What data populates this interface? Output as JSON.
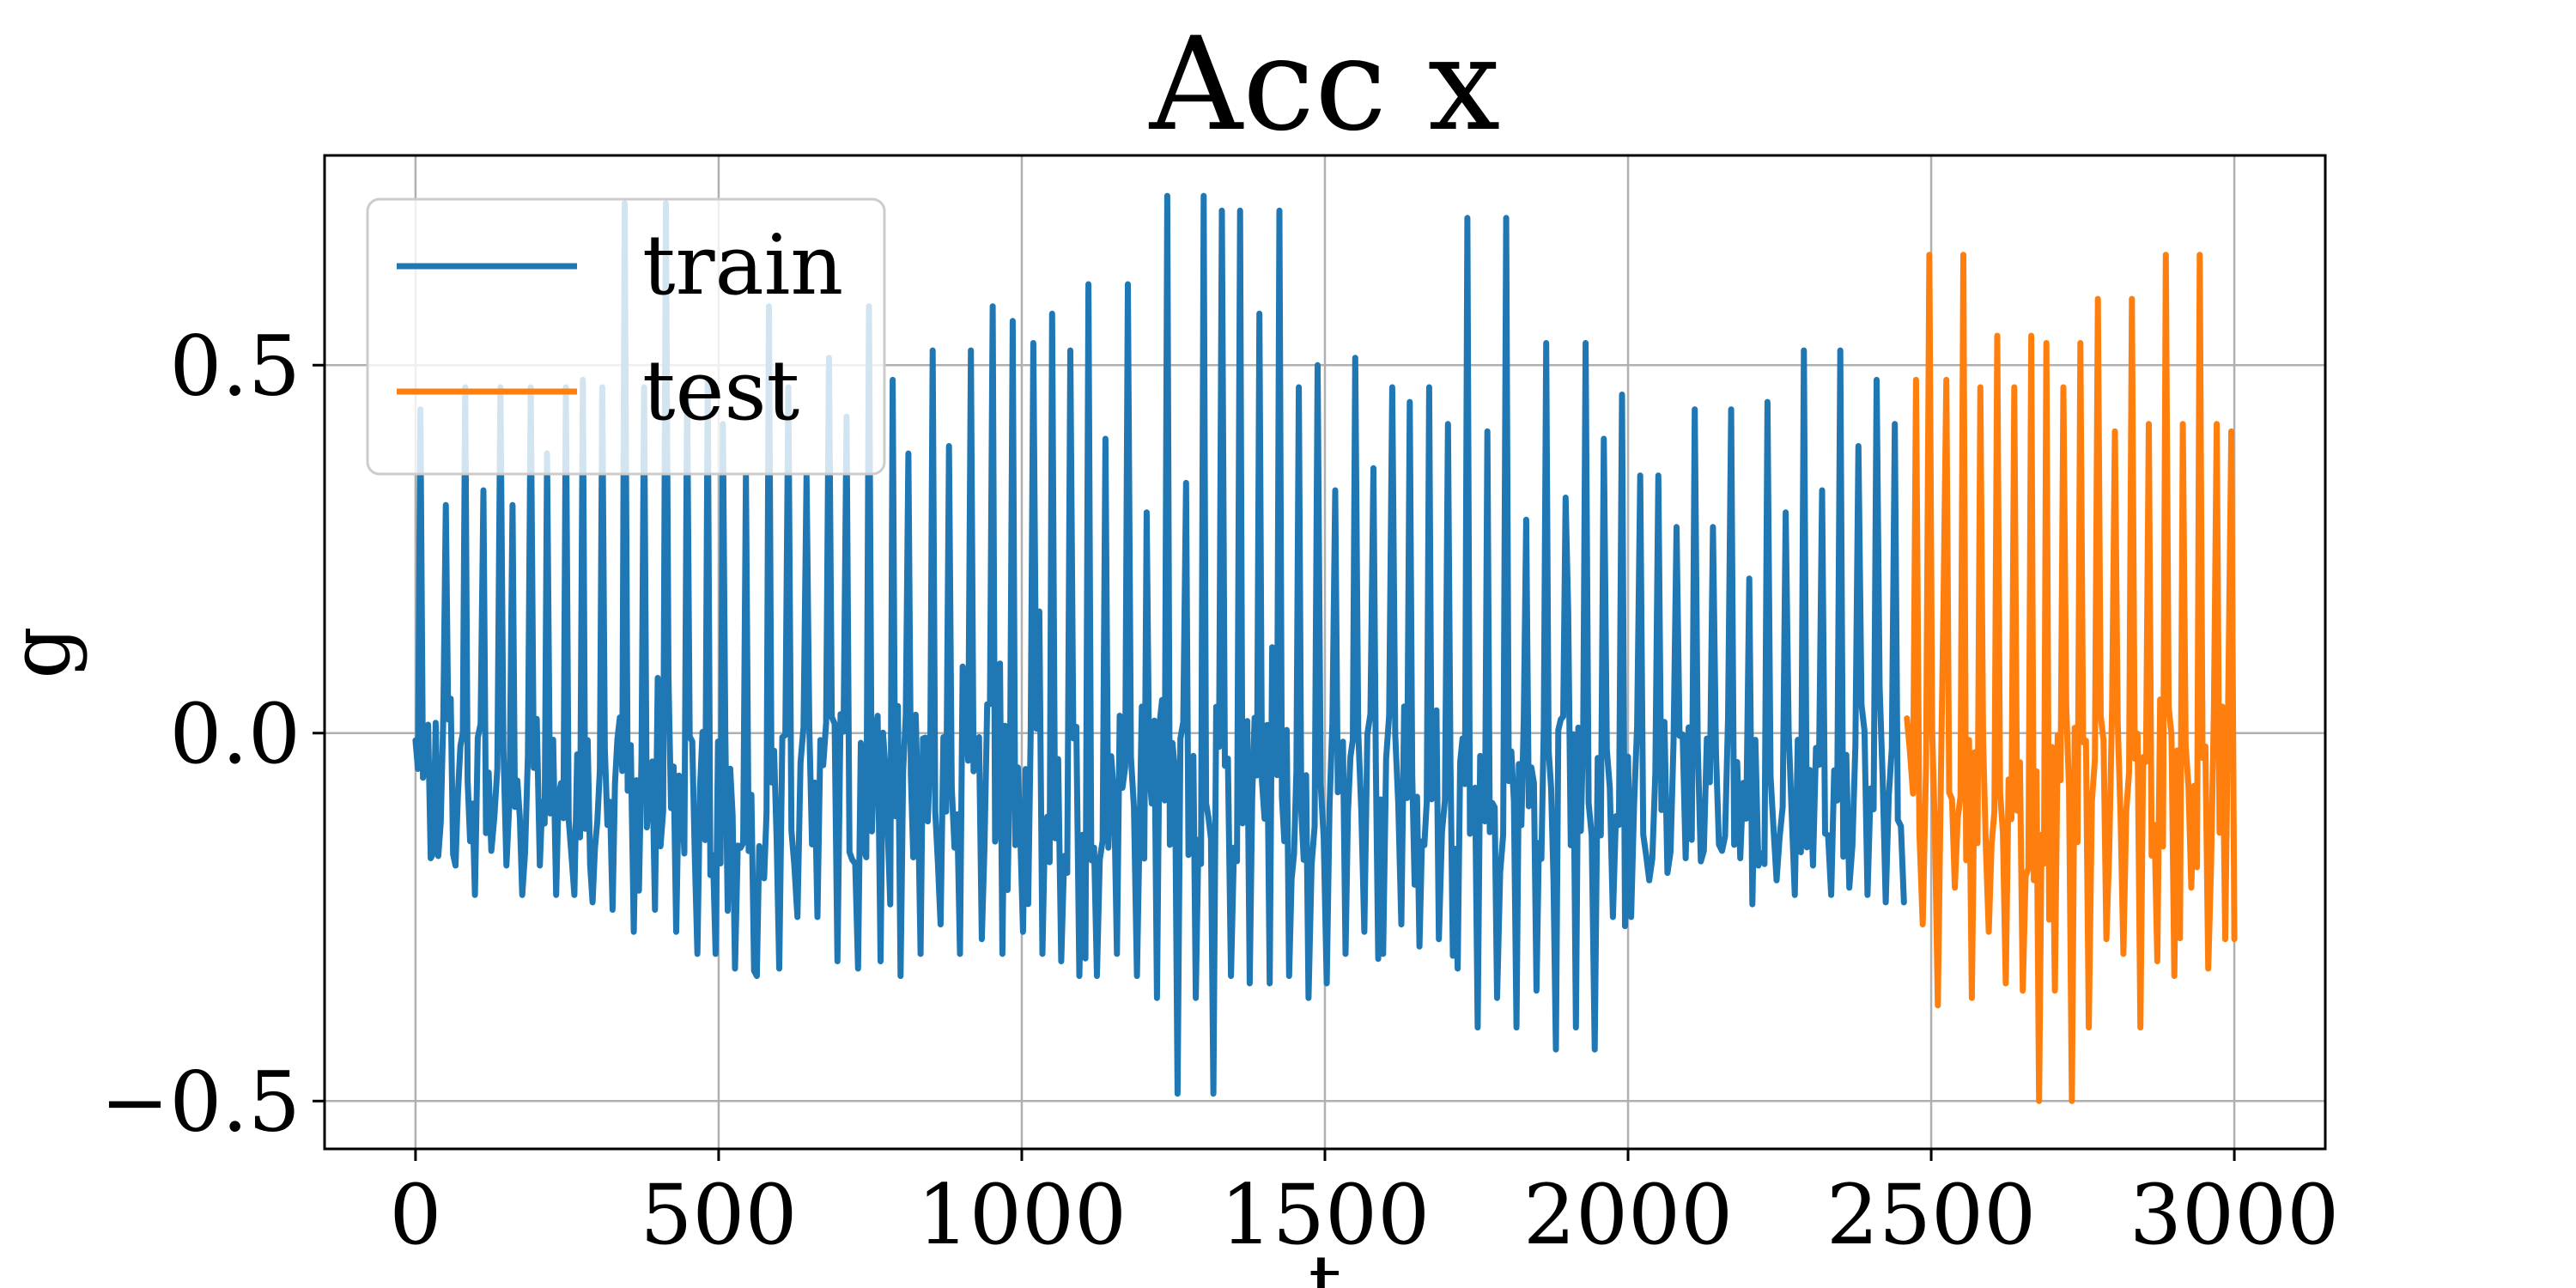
{
  "chart_data": {
    "type": "line",
    "title": "Acc x",
    "xlabel": "t",
    "ylabel": "g",
    "xlim": [
      -150,
      3150
    ],
    "ylim": [
      -0.565,
      0.785
    ],
    "xticks": [
      0,
      500,
      1000,
      1500,
      2000,
      2500,
      3000
    ],
    "xtick_labels": [
      "0",
      "500",
      "1000",
      "1500",
      "2000",
      "2500",
      "3000"
    ],
    "yticks": [
      -0.5,
      0.0,
      0.5
    ],
    "ytick_labels": [
      "−0.5",
      "0.0",
      "0.5"
    ],
    "grid": true,
    "legend_position": "top-left",
    "series": [
      {
        "name": "train",
        "color": "#1f77b4",
        "x_range": [
          0,
          2460
        ],
        "peak_x": [
          8,
          50,
          82,
          112,
          140,
          160,
          190,
          217,
          248,
          276,
          308,
          345,
          377,
          413,
          448,
          482,
          507,
          545,
          583,
          615,
          645,
          682,
          711,
          748,
          787,
          813,
          853,
          880,
          916,
          952,
          985,
          1019,
          1050,
          1080,
          1110,
          1138,
          1175,
          1206,
          1240,
          1271,
          1300,
          1330,
          1360,
          1392,
          1425,
          1457,
          1488,
          1517,
          1550,
          1580,
          1611,
          1640,
          1672,
          1703,
          1735,
          1768,
          1799,
          1832,
          1865,
          1897,
          1930,
          1960,
          1990,
          2020,
          2050,
          2080,
          2110,
          2140,
          2170,
          2200,
          2230,
          2260,
          2290,
          2320,
          2350,
          2380,
          2410,
          2440
        ],
        "peak_y": [
          0.44,
          0.31,
          0.47,
          0.33,
          0.47,
          0.31,
          0.47,
          0.38,
          0.47,
          0.48,
          0.47,
          0.72,
          0.47,
          0.72,
          0.47,
          0.48,
          0.42,
          0.35,
          0.58,
          0.47,
          0.35,
          0.51,
          0.43,
          0.58,
          0.48,
          0.38,
          0.52,
          0.39,
          0.52,
          0.58,
          0.56,
          0.53,
          0.57,
          0.52,
          0.61,
          0.4,
          0.61,
          0.3,
          0.73,
          0.34,
          0.73,
          0.71,
          0.71,
          0.57,
          0.71,
          0.47,
          0.5,
          0.33,
          0.51,
          0.36,
          0.47,
          0.45,
          0.47,
          0.42,
          0.7,
          0.41,
          0.7,
          0.29,
          0.53,
          0.32,
          0.53,
          0.4,
          0.46,
          0.35,
          0.35,
          0.28,
          0.44,
          0.28,
          0.44,
          0.21,
          0.45,
          0.3,
          0.52,
          0.33,
          0.52,
          0.39,
          0.48,
          0.42
        ],
        "trough_x": [
          25,
          66,
          98,
          125,
          150,
          176,
          205,
          232,
          262,
          292,
          325,
          360,
          395,
          430,
          465,
          495,
          527,
          563,
          600,
          630,
          663,
          696,
          730,
          767,
          800,
          833,
          866,
          898,
          934,
          968,
          1002,
          1034,
          1065,
          1095,
          1124,
          1157,
          1190,
          1223,
          1257,
          1287,
          1316,
          1345,
          1376,
          1409,
          1441,
          1473,
          1503,
          1534,
          1565,
          1596,
          1626,
          1656,
          1688,
          1719,
          1752,
          1784,
          1816,
          1849,
          1881,
          1914,
          1945,
          1975,
          2005,
          2035,
          2065,
          2095,
          2125,
          2155,
          2185,
          2215,
          2245,
          2275,
          2305,
          2335,
          2365,
          2395,
          2425,
          2455
        ],
        "trough_y": [
          -0.17,
          -0.18,
          -0.22,
          -0.16,
          -0.18,
          -0.22,
          -0.18,
          -0.22,
          -0.22,
          -0.23,
          -0.24,
          -0.27,
          -0.24,
          -0.27,
          -0.3,
          -0.3,
          -0.32,
          -0.33,
          -0.32,
          -0.25,
          -0.25,
          -0.31,
          -0.32,
          -0.31,
          -0.33,
          -0.3,
          -0.26,
          -0.3,
          -0.28,
          -0.3,
          -0.27,
          -0.3,
          -0.31,
          -0.33,
          -0.33,
          -0.3,
          -0.33,
          -0.36,
          -0.49,
          -0.36,
          -0.49,
          -0.33,
          -0.34,
          -0.34,
          -0.33,
          -0.36,
          -0.34,
          -0.3,
          -0.27,
          -0.3,
          -0.26,
          -0.29,
          -0.28,
          -0.32,
          -0.4,
          -0.36,
          -0.4,
          -0.35,
          -0.43,
          -0.4,
          -0.43,
          -0.25,
          -0.25,
          -0.2,
          -0.19,
          -0.17,
          -0.16,
          -0.16,
          -0.17,
          -0.18,
          -0.2,
          -0.22,
          -0.18,
          -0.22,
          -0.21,
          -0.22,
          -0.23,
          -0.23
        ],
        "baseline": -0.07,
        "start_y": -0.01
      },
      {
        "name": "test",
        "color": "#ff7f0e",
        "x_range": [
          2460,
          3000
        ],
        "peak_x": [
          2475,
          2497,
          2525,
          2553,
          2581,
          2609,
          2637,
          2665,
          2690,
          2718,
          2746,
          2775,
          2803,
          2831,
          2859,
          2887,
          2915,
          2943,
          2971,
          2995
        ],
        "peak_y": [
          0.48,
          0.65,
          0.48,
          0.65,
          0.47,
          0.54,
          0.47,
          0.54,
          0.53,
          0.47,
          0.53,
          0.59,
          0.41,
          0.59,
          0.42,
          0.65,
          0.42,
          0.65,
          0.42,
          0.41
        ],
        "trough_x": [
          2486,
          2511,
          2539,
          2567,
          2595,
          2623,
          2651,
          2678,
          2704,
          2732,
          2760,
          2789,
          2817,
          2845,
          2873,
          2901,
          2929,
          2957,
          2985
        ],
        "trough_y": [
          -0.26,
          -0.37,
          -0.21,
          -0.36,
          -0.27,
          -0.34,
          -0.35,
          -0.5,
          -0.35,
          -0.5,
          -0.4,
          -0.28,
          -0.3,
          -0.4,
          -0.31,
          -0.33,
          -0.21,
          -0.32,
          -0.28
        ],
        "baseline": -0.07,
        "start_y": 0.02,
        "end_y": -0.28
      }
    ]
  }
}
